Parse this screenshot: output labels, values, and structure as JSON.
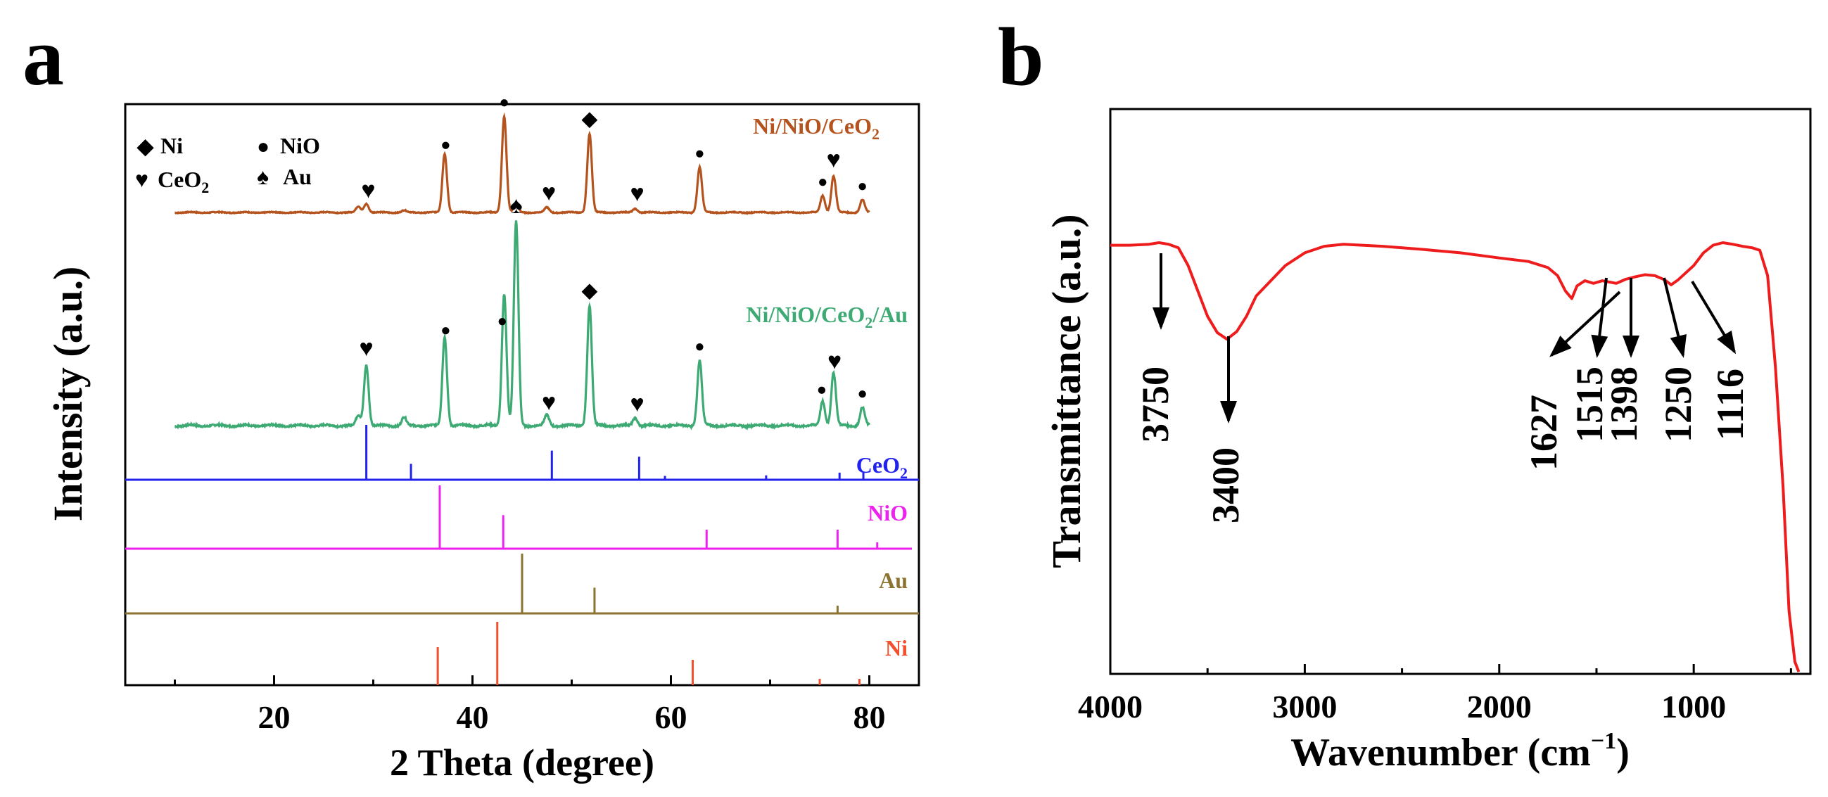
{
  "panels": {
    "a": {
      "letter": "a"
    },
    "b": {
      "letter": "b"
    }
  },
  "chart_data": [
    {
      "type": "line",
      "panel": "a",
      "xlabel": "2 Theta (degree)",
      "ylabel": "Intensity (a.u.)",
      "xlim": [
        5,
        85
      ],
      "xticks": [
        20,
        40,
        60,
        80
      ],
      "legend": {
        "placement": "top-left",
        "entries": [
          {
            "symbol": "◆",
            "label": "Ni"
          },
          {
            "symbol": "●",
            "label": "NiO"
          },
          {
            "symbol": "♥",
            "label": "CeO",
            "sub": "2"
          },
          {
            "symbol": "♠",
            "label": "Au"
          }
        ]
      },
      "series": [
        {
          "name": "Ni/NiO/CeO2",
          "label": "Ni/NiO/CeO",
          "sub": "2",
          "color": "#B5531E",
          "baseline": 0.93,
          "scale": 0.98,
          "peaks": [
            [
              28.5,
              0.06
            ],
            [
              29.3,
              0.09
            ],
            [
              33.1,
              0.02
            ],
            [
              37.2,
              0.6
            ],
            [
              43.2,
              0.98
            ],
            [
              44.4,
              0.09
            ],
            [
              47.5,
              0.05
            ],
            [
              51.8,
              0.8
            ],
            [
              56.4,
              0.04
            ],
            [
              62.9,
              0.46
            ],
            [
              75.3,
              0.17
            ],
            [
              76.4,
              0.37
            ],
            [
              79.3,
              0.13
            ]
          ]
        },
        {
          "name": "Ni/NiO/CeO2/Au",
          "label": "Ni/NiO/CeO",
          "sub": "2",
          "label_suffix": "/Au",
          "color": "#3DAA74",
          "baseline": 0.2,
          "scale": 0.74,
          "peaks": [
            [
              28.5,
              0.05
            ],
            [
              29.3,
              0.3
            ],
            [
              33.1,
              0.04
            ],
            [
              37.2,
              0.44
            ],
            [
              43.2,
              0.65
            ],
            [
              44.4,
              1.0
            ],
            [
              47.5,
              0.05
            ],
            [
              51.8,
              0.59
            ],
            [
              56.4,
              0.04
            ],
            [
              62.9,
              0.32
            ],
            [
              75.3,
              0.12
            ],
            [
              76.4,
              0.26
            ],
            [
              79.3,
              0.09
            ]
          ]
        }
      ],
      "peak_markers": [
        {
          "series": "Ni/NiO/CeO2",
          "x": 29.5,
          "symbol": "♥"
        },
        {
          "series": "Ni/NiO/CeO2",
          "x": 37.3,
          "symbol": "●"
        },
        {
          "series": "Ni/NiO/CeO2",
          "x": 43.2,
          "symbol": "●"
        },
        {
          "series": "Ni/NiO/CeO2",
          "x": 47.7,
          "symbol": "♥"
        },
        {
          "series": "Ni/NiO/CeO2",
          "x": 51.8,
          "symbol": "◆"
        },
        {
          "series": "Ni/NiO/CeO2",
          "x": 56.6,
          "symbol": "♥"
        },
        {
          "series": "Ni/NiO/CeO2",
          "x": 62.9,
          "symbol": "●"
        },
        {
          "series": "Ni/NiO/CeO2",
          "x": 75.3,
          "symbol": "●"
        },
        {
          "series": "Ni/NiO/CeO2",
          "x": 76.4,
          "symbol": "♥"
        },
        {
          "series": "Ni/NiO/CeO2",
          "x": 79.3,
          "symbol": "●"
        },
        {
          "series": "Ni/NiO/CeO2/Au",
          "x": 29.3,
          "symbol": "♥"
        },
        {
          "series": "Ni/NiO/CeO2/Au",
          "x": 37.3,
          "symbol": "●"
        },
        {
          "series": "Ni/NiO/CeO2/Au",
          "x": 43.0,
          "symbol": "●"
        },
        {
          "series": "Ni/NiO/CeO2/Au",
          "x": 44.4,
          "symbol": "♠"
        },
        {
          "series": "Ni/NiO/CeO2/Au",
          "x": 47.7,
          "symbol": "♥"
        },
        {
          "series": "Ni/NiO/CeO2/Au",
          "x": 51.8,
          "symbol": "◆"
        },
        {
          "series": "Ni/NiO/CeO2/Au",
          "x": 56.6,
          "symbol": "♥"
        },
        {
          "series": "Ni/NiO/CeO2/Au",
          "x": 62.9,
          "symbol": "●"
        },
        {
          "series": "Ni/NiO/CeO2/Au",
          "x": 75.2,
          "symbol": "●"
        },
        {
          "series": "Ni/NiO/CeO2/Au",
          "x": 76.5,
          "symbol": "♥"
        },
        {
          "series": "Ni/NiO/CeO2/Au",
          "x": 79.3,
          "symbol": "●"
        }
      ],
      "references": [
        {
          "name": "CeO2",
          "label": "CeO",
          "sub": "2",
          "color": "#2222EE",
          "lines": [
            [
              29.3,
              1.0
            ],
            [
              33.8,
              0.29
            ],
            [
              48.0,
              0.53
            ],
            [
              56.8,
              0.42
            ],
            [
              59.4,
              0.07
            ],
            [
              69.6,
              0.08
            ],
            [
              77.0,
              0.13
            ],
            [
              79.4,
              0.13
            ]
          ]
        },
        {
          "name": "NiO",
          "label": "NiO",
          "color": "#EE22EE",
          "lines": [
            [
              36.7,
              1.0
            ],
            [
              43.1,
              0.53
            ],
            [
              63.6,
              0.3
            ],
            [
              76.8,
              0.3
            ],
            [
              80.8,
              0.1
            ]
          ]
        },
        {
          "name": "Au",
          "label": "Au",
          "color": "#8C7330",
          "lines": [
            [
              45.0,
              1.0
            ],
            [
              52.3,
              0.43
            ],
            [
              76.8,
              0.13
            ]
          ]
        },
        {
          "name": "Ni",
          "label": "Ni",
          "color": "#F0502D",
          "lines": [
            [
              36.5,
              0.6
            ],
            [
              42.5,
              1.0
            ],
            [
              62.2,
              0.4
            ],
            [
              75.0,
              0.1
            ],
            [
              79.0,
              0.1
            ]
          ]
        }
      ]
    },
    {
      "type": "line",
      "panel": "b",
      "xlabel": "Wavenumber (cm",
      "xlabel_sup": "−1",
      "xlabel_end": ")",
      "ylabel": "Transmittance (a.u.)",
      "xlim": [
        4000,
        400
      ],
      "ylim": [
        0,
        1
      ],
      "xticks": [
        4000,
        3000,
        2000,
        1000
      ],
      "series": [
        {
          "name": "FTIR",
          "color": "#EE1C1C",
          "points": [
            [
              4000,
              0.84
            ],
            [
              3900,
              0.84
            ],
            [
              3800,
              0.842
            ],
            [
              3750,
              0.845
            ],
            [
              3700,
              0.842
            ],
            [
              3650,
              0.835
            ],
            [
              3600,
              0.8
            ],
            [
              3550,
              0.75
            ],
            [
              3500,
              0.7
            ],
            [
              3450,
              0.668
            ],
            [
              3400,
              0.655
            ],
            [
              3350,
              0.67
            ],
            [
              3300,
              0.7
            ],
            [
              3250,
              0.74
            ],
            [
              3200,
              0.76
            ],
            [
              3100,
              0.8
            ],
            [
              3000,
              0.825
            ],
            [
              2900,
              0.838
            ],
            [
              2800,
              0.842
            ],
            [
              2600,
              0.838
            ],
            [
              2400,
              0.832
            ],
            [
              2200,
              0.825
            ],
            [
              2000,
              0.815
            ],
            [
              1850,
              0.808
            ],
            [
              1750,
              0.796
            ],
            [
              1700,
              0.78
            ],
            [
              1660,
              0.75
            ],
            [
              1627,
              0.735
            ],
            [
              1600,
              0.76
            ],
            [
              1560,
              0.77
            ],
            [
              1515,
              0.765
            ],
            [
              1470,
              0.77
            ],
            [
              1398,
              0.765
            ],
            [
              1350,
              0.773
            ],
            [
              1300,
              0.778
            ],
            [
              1250,
              0.782
            ],
            [
              1200,
              0.78
            ],
            [
              1150,
              0.772
            ],
            [
              1116,
              0.762
            ],
            [
              1080,
              0.772
            ],
            [
              1000,
              0.8
            ],
            [
              950,
              0.825
            ],
            [
              900,
              0.84
            ],
            [
              850,
              0.845
            ],
            [
              800,
              0.842
            ],
            [
              750,
              0.838
            ],
            [
              700,
              0.835
            ],
            [
              660,
              0.83
            ],
            [
              620,
              0.78
            ],
            [
              580,
              0.6
            ],
            [
              540,
              0.36
            ],
            [
              510,
              0.12
            ],
            [
              480,
              0.02
            ],
            [
              460,
              0.0
            ]
          ]
        }
      ],
      "annotations": [
        {
          "label": "3750",
          "x": 3750,
          "y_tip": 0.61,
          "dir": "down",
          "text_y": 0.58
        },
        {
          "label": "3400",
          "x": 3400,
          "y_tip": 0.42,
          "dir": "down",
          "text_y": 0.39
        },
        {
          "label": "1627",
          "x": 1627,
          "y_tip": 0.53,
          "dir": "diag",
          "x_end": 1910,
          "text_y": 0.5
        },
        {
          "label": "1515",
          "x": 1515,
          "y_tip": 0.53,
          "dir": "diag",
          "x_end": 1550,
          "text_y": 0.5
        },
        {
          "label": "1398",
          "x": 1398,
          "y_tip": 0.53,
          "dir": "down",
          "text_y": 0.5
        },
        {
          "label": "1250",
          "x": 1250,
          "y_tip": 0.53,
          "dir": "diag",
          "x_end": 1160,
          "text_y": 0.5
        },
        {
          "label": "1116",
          "x": 1116,
          "y_tip": 0.53,
          "dir": "diag",
          "x_end": 920,
          "text_y": 0.5
        }
      ]
    }
  ]
}
